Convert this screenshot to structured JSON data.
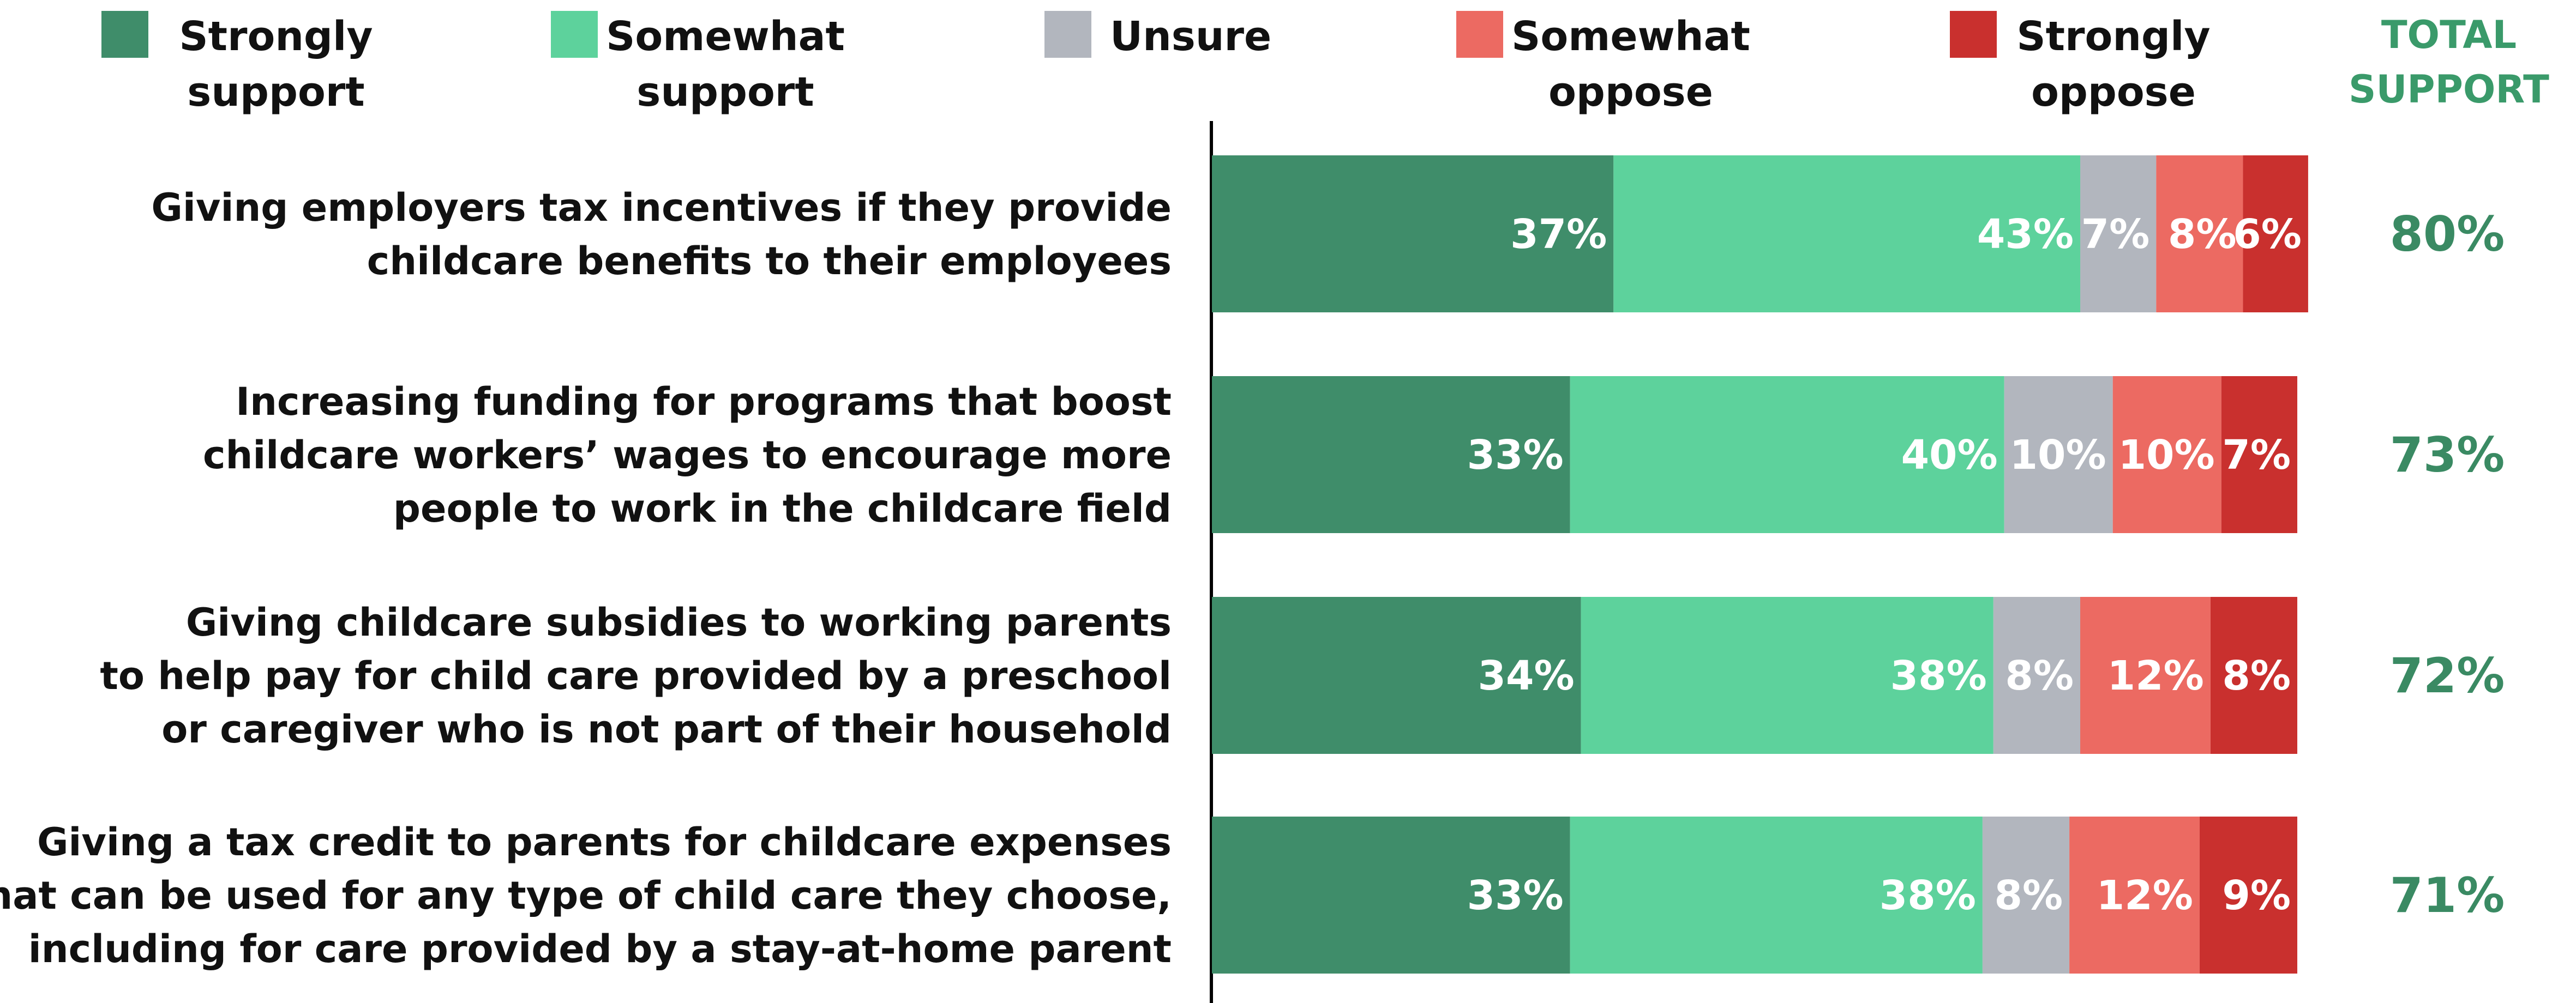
{
  "legend": [
    {
      "label": "Strongly support",
      "color": "#3f8d6a"
    },
    {
      "label": "Somewhat support",
      "color": "#5dd29c"
    },
    {
      "label": "Unsure",
      "color": "#b2b6be"
    },
    {
      "label": "Somewhat oppose",
      "color": "#ec6a62"
    },
    {
      "label": "Strongly oppose",
      "color": "#c9302e"
    }
  ],
  "total_header": "TOTAL SUPPORT",
  "chart_data": {
    "type": "bar",
    "orientation": "horizontal",
    "stacked": true,
    "categories": [
      "Giving employers tax incentives if they provide childcare benefits to their employees",
      "Increasing funding for programs that boost childcare workers’ wages to encourage more people to work in the childcare field",
      "Giving childcare subsidies to working parents to help pay for child care provided by a preschool or caregiver who is not part of their household",
      "Giving a tax credit to parents for childcare expenses that can be used for any type of child care they choose, including for care provided by a stay-at-home parent"
    ],
    "category_lines": [
      [
        "Giving employers tax incentives if they provide",
        "childcare benefits to their employees"
      ],
      [
        "Increasing funding for programs that boost",
        "childcare workers’ wages to encourage more",
        "people to work in the childcare field"
      ],
      [
        "Giving childcare subsidies to working parents",
        "to help pay for child care provided by a preschool",
        "or caregiver who is not part of their household"
      ],
      [
        "Giving a tax credit to parents for childcare expenses",
        "that can be used for any type of child care they choose,",
        "including for care provided by a stay-at-home parent"
      ]
    ],
    "series": [
      {
        "name": "Strongly support",
        "values": [
          37,
          33,
          34,
          33
        ],
        "color": "#3f8d6a"
      },
      {
        "name": "Somewhat support",
        "values": [
          43,
          40,
          38,
          38
        ],
        "color": "#5dd29c"
      },
      {
        "name": "Unsure",
        "values": [
          7,
          10,
          8,
          8
        ],
        "color": "#b2b6be"
      },
      {
        "name": "Somewhat oppose",
        "values": [
          8,
          10,
          12,
          12
        ],
        "color": "#ec6a62"
      },
      {
        "name": "Strongly oppose",
        "values": [
          6,
          7,
          8,
          9
        ],
        "color": "#c9302e"
      }
    ],
    "value_suffix": "%",
    "total_support": [
      "80%",
      "73%",
      "72%",
      "71%"
    ],
    "legend_position": "top",
    "grid": false
  }
}
